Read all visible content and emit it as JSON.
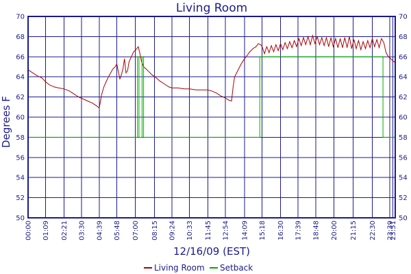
{
  "chart_data": {
    "type": "line",
    "title": "Living Room",
    "xlabel": "12/16/09 (EST)",
    "ylabel": "Degrees F",
    "ylim": [
      50,
      70
    ],
    "y_ticks": [
      50,
      52,
      54,
      56,
      58,
      60,
      62,
      64,
      66,
      68,
      70
    ],
    "x_range_hours": [
      0,
      24
    ],
    "x_tick_labels": [
      "00:00",
      "01:09",
      "02:21",
      "03:30",
      "04:39",
      "05:48",
      "07:00",
      "08:15",
      "09:24",
      "10:33",
      "11:45",
      "12:54",
      "14:09",
      "15:18",
      "16:30",
      "17:39",
      "18:48",
      "20:00",
      "21:15",
      "22:30",
      "23:39",
      "23:51"
    ],
    "x_tick_hours": [
      0,
      1.15,
      2.35,
      3.5,
      4.65,
      5.8,
      7.0,
      8.25,
      9.4,
      10.55,
      11.75,
      12.9,
      14.15,
      15.3,
      16.5,
      17.65,
      18.8,
      20.0,
      21.25,
      22.5,
      23.65,
      23.85
    ],
    "grid": true,
    "legend": "bottom",
    "series": [
      {
        "name": "Living Room",
        "color": "#aa0000",
        "points": [
          [
            0.0,
            64.7
          ],
          [
            0.3,
            64.4
          ],
          [
            0.6,
            64.1
          ],
          [
            0.9,
            63.9
          ],
          [
            1.15,
            63.5
          ],
          [
            1.4,
            63.2
          ],
          [
            1.7,
            63.0
          ],
          [
            2.0,
            62.9
          ],
          [
            2.35,
            62.8
          ],
          [
            2.7,
            62.6
          ],
          [
            3.0,
            62.3
          ],
          [
            3.3,
            62.0
          ],
          [
            3.6,
            61.8
          ],
          [
            3.9,
            61.6
          ],
          [
            4.2,
            61.4
          ],
          [
            4.5,
            61.1
          ],
          [
            4.65,
            60.9
          ],
          [
            4.8,
            62.2
          ],
          [
            4.95,
            63.0
          ],
          [
            5.1,
            63.5
          ],
          [
            5.25,
            64.0
          ],
          [
            5.4,
            64.4
          ],
          [
            5.55,
            64.8
          ],
          [
            5.7,
            65.0
          ],
          [
            5.8,
            65.3
          ],
          [
            5.9,
            64.5
          ],
          [
            6.0,
            63.8
          ],
          [
            6.1,
            64.2
          ],
          [
            6.2,
            64.8
          ],
          [
            6.3,
            65.8
          ],
          [
            6.4,
            64.4
          ],
          [
            6.5,
            64.6
          ],
          [
            6.6,
            65.5
          ],
          [
            6.75,
            66.0
          ],
          [
            6.9,
            66.5
          ],
          [
            7.05,
            66.7
          ],
          [
            7.2,
            67.0
          ],
          [
            7.3,
            66.4
          ],
          [
            7.4,
            65.6
          ],
          [
            7.55,
            65.0
          ],
          [
            7.7,
            64.8
          ],
          [
            7.9,
            64.5
          ],
          [
            8.1,
            64.2
          ],
          [
            8.3,
            64.0
          ],
          [
            8.6,
            63.6
          ],
          [
            8.9,
            63.3
          ],
          [
            9.2,
            63.0
          ],
          [
            9.4,
            62.9
          ],
          [
            9.8,
            62.9
          ],
          [
            10.2,
            62.8
          ],
          [
            10.55,
            62.8
          ],
          [
            11.0,
            62.7
          ],
          [
            11.4,
            62.7
          ],
          [
            11.75,
            62.7
          ],
          [
            12.0,
            62.6
          ],
          [
            12.3,
            62.4
          ],
          [
            12.6,
            62.1
          ],
          [
            12.9,
            61.9
          ],
          [
            13.1,
            61.7
          ],
          [
            13.3,
            61.6
          ],
          [
            13.4,
            63.0
          ],
          [
            13.5,
            64.0
          ],
          [
            13.7,
            64.6
          ],
          [
            13.9,
            65.2
          ],
          [
            14.1,
            65.7
          ],
          [
            14.3,
            66.1
          ],
          [
            14.5,
            66.5
          ],
          [
            14.7,
            66.8
          ],
          [
            14.9,
            67.0
          ],
          [
            15.05,
            67.3
          ],
          [
            15.2,
            67.2
          ],
          [
            15.3,
            67.0
          ],
          [
            15.45,
            66.3
          ],
          [
            15.6,
            67.0
          ],
          [
            15.75,
            66.4
          ],
          [
            15.9,
            67.1
          ],
          [
            16.05,
            66.5
          ],
          [
            16.2,
            67.2
          ],
          [
            16.35,
            66.6
          ],
          [
            16.5,
            67.3
          ],
          [
            16.65,
            66.7
          ],
          [
            16.8,
            67.4
          ],
          [
            16.95,
            66.8
          ],
          [
            17.1,
            67.5
          ],
          [
            17.25,
            66.9
          ],
          [
            17.4,
            67.6
          ],
          [
            17.55,
            67.0
          ],
          [
            17.7,
            67.8
          ],
          [
            17.85,
            67.1
          ],
          [
            18.0,
            67.9
          ],
          [
            18.15,
            67.2
          ],
          [
            18.3,
            68.0
          ],
          [
            18.45,
            67.2
          ],
          [
            18.6,
            68.1
          ],
          [
            18.75,
            67.3
          ],
          [
            18.9,
            68.0
          ],
          [
            19.05,
            67.2
          ],
          [
            19.2,
            67.9
          ],
          [
            19.35,
            67.1
          ],
          [
            19.5,
            67.9
          ],
          [
            19.65,
            67.0
          ],
          [
            19.8,
            67.9
          ],
          [
            19.95,
            67.0
          ],
          [
            20.1,
            67.8
          ],
          [
            20.25,
            66.9
          ],
          [
            20.4,
            67.8
          ],
          [
            20.55,
            66.9
          ],
          [
            20.7,
            67.9
          ],
          [
            20.85,
            66.9
          ],
          [
            21.0,
            68.0
          ],
          [
            21.15,
            66.8
          ],
          [
            21.3,
            67.7
          ],
          [
            21.45,
            66.8
          ],
          [
            21.6,
            67.6
          ],
          [
            21.75,
            66.7
          ],
          [
            21.9,
            67.5
          ],
          [
            22.05,
            66.8
          ],
          [
            22.2,
            67.6
          ],
          [
            22.35,
            66.9
          ],
          [
            22.5,
            67.8
          ],
          [
            22.65,
            67.0
          ],
          [
            22.8,
            67.7
          ],
          [
            22.95,
            66.9
          ],
          [
            23.1,
            67.8
          ],
          [
            23.25,
            67.4
          ],
          [
            23.4,
            66.4
          ],
          [
            23.55,
            66.0
          ],
          [
            23.7,
            65.8
          ],
          [
            23.85,
            65.6
          ],
          [
            24.0,
            65.4
          ]
        ]
      },
      {
        "name": "Setback",
        "color": "#00aa00",
        "points": [
          [
            0,
            58
          ],
          [
            7.15,
            58
          ],
          [
            7.15,
            66
          ],
          [
            7.25,
            66
          ],
          [
            7.25,
            58
          ],
          [
            7.45,
            58
          ],
          [
            7.45,
            66
          ],
          [
            7.55,
            66
          ],
          [
            7.55,
            58
          ],
          [
            15.15,
            58
          ],
          [
            15.15,
            66
          ],
          [
            23.2,
            66
          ],
          [
            23.2,
            58
          ],
          [
            24,
            58
          ]
        ]
      }
    ]
  }
}
